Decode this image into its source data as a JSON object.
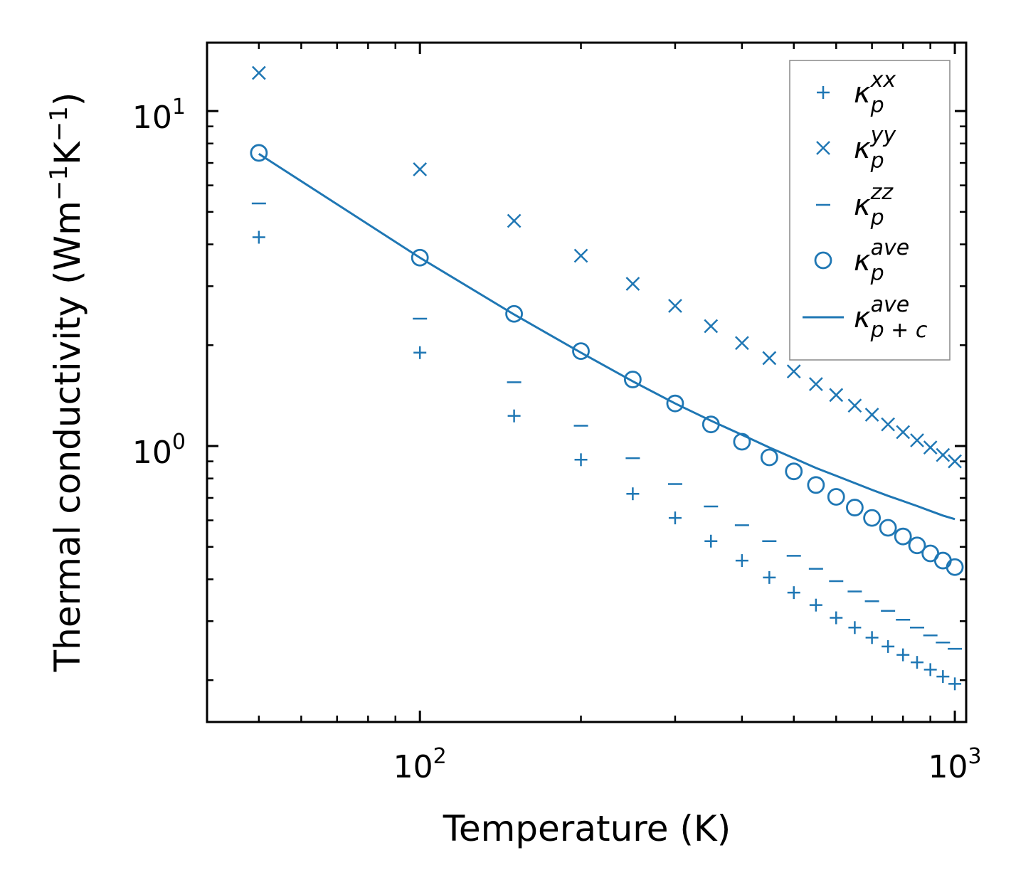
{
  "chart_data": {
    "type": "scatter",
    "title": "",
    "xlabel": "Temperature (K)",
    "ylabel": "Thermal conductivity (Wm",
    "ylabel_unit_parts": [
      "−1",
      "K",
      "−1",
      ")"
    ],
    "xscale": "log",
    "yscale": "log",
    "xlim": [
      40,
      1050
    ],
    "ylim": [
      0.15,
      16
    ],
    "x_ticks": [
      {
        "value": 100,
        "base": "10",
        "exp": "2"
      },
      {
        "value": 1000,
        "base": "10",
        "exp": "3"
      }
    ],
    "y_ticks": [
      {
        "value": 1,
        "base": "10",
        "exp": "0"
      },
      {
        "value": 10,
        "base": "10",
        "exp": "1"
      }
    ],
    "color": "#1f77b4",
    "x": [
      50,
      100,
      150,
      200,
      250,
      300,
      350,
      400,
      450,
      500,
      550,
      600,
      650,
      700,
      750,
      800,
      850,
      900,
      950,
      1000
    ],
    "series": [
      {
        "name": "κ_p^xx",
        "symbol": "κ",
        "sub": "p",
        "sup": "xx",
        "marker": "plus",
        "values": [
          4.2,
          1.9,
          1.23,
          0.91,
          0.72,
          0.61,
          0.52,
          0.455,
          0.405,
          0.365,
          0.335,
          0.307,
          0.287,
          0.268,
          0.252,
          0.238,
          0.226,
          0.215,
          0.205,
          0.195
        ]
      },
      {
        "name": "κ_p^yy",
        "symbol": "κ",
        "sub": "p",
        "sup": "yy",
        "marker": "x",
        "values": [
          13.0,
          6.7,
          4.7,
          3.7,
          3.05,
          2.62,
          2.28,
          2.03,
          1.83,
          1.67,
          1.53,
          1.42,
          1.32,
          1.24,
          1.16,
          1.1,
          1.04,
          0.99,
          0.94,
          0.9
        ]
      },
      {
        "name": "κ_p^zz",
        "symbol": "κ",
        "sub": "p",
        "sup": "zz",
        "marker": "hline",
        "values": [
          5.3,
          2.4,
          1.55,
          1.15,
          0.92,
          0.77,
          0.66,
          0.58,
          0.52,
          0.47,
          0.43,
          0.395,
          0.368,
          0.344,
          0.322,
          0.303,
          0.287,
          0.272,
          0.259,
          0.248
        ]
      },
      {
        "name": "κ_p^ave",
        "symbol": "κ",
        "sub": "p",
        "sup": "ave",
        "marker": "circle",
        "values": [
          7.5,
          3.65,
          2.48,
          1.92,
          1.58,
          1.34,
          1.16,
          1.03,
          0.925,
          0.84,
          0.765,
          0.705,
          0.655,
          0.61,
          0.57,
          0.537,
          0.505,
          0.478,
          0.455,
          0.435
        ]
      },
      {
        "name": "κ_{p+c}^ave",
        "symbol": "κ",
        "sub": "p + c",
        "sup": "ave",
        "marker": "line",
        "values": [
          7.45,
          3.65,
          2.47,
          1.9,
          1.56,
          1.34,
          1.19,
          1.08,
          0.99,
          0.92,
          0.86,
          0.815,
          0.775,
          0.74,
          0.71,
          0.685,
          0.662,
          0.64,
          0.62,
          0.605
        ]
      }
    ],
    "legend": {
      "position": "top-right"
    }
  }
}
